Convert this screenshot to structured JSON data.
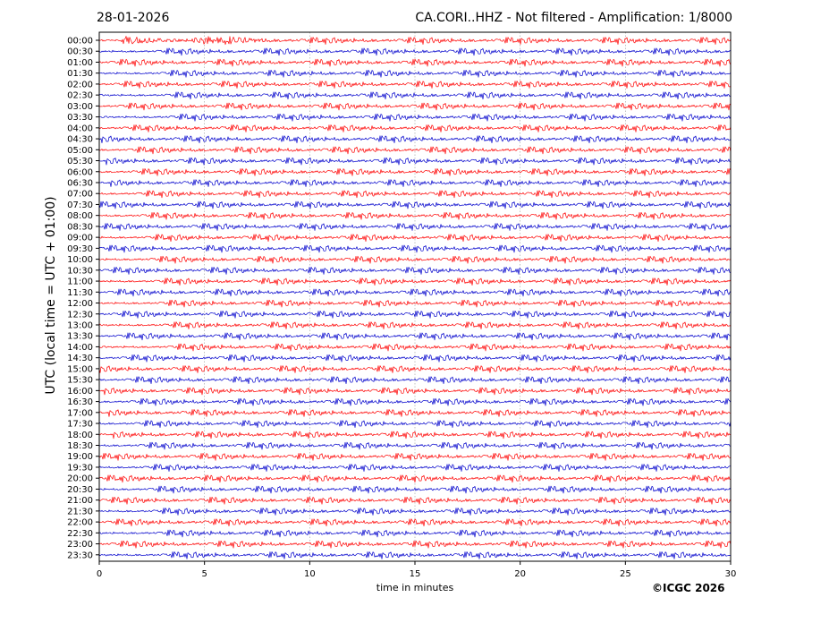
{
  "header": {
    "date": "28-01-2026",
    "title": "CA.CORI..HHZ - Not filtered - Amplification: 1/8000"
  },
  "footer": {
    "copyright": "©ICGC 2026"
  },
  "chart_data": {
    "type": "line",
    "title": "CA.CORI..HHZ - Not filtered - Amplification: 1/8000",
    "xlabel": "time in minutes",
    "ylabel": "UTC (local time = UTC + 01:00)",
    "xlim": [
      0,
      30
    ],
    "x_ticks": [
      0,
      5,
      10,
      15,
      20,
      25,
      30
    ],
    "grid": "vertical-dotted",
    "legend": "none",
    "row_labels": [
      "00:00",
      "00:30",
      "01:00",
      "01:30",
      "02:00",
      "02:30",
      "03:00",
      "03:30",
      "04:00",
      "04:30",
      "05:00",
      "05:30",
      "06:00",
      "06:30",
      "07:00",
      "07:30",
      "08:00",
      "08:30",
      "09:00",
      "09:30",
      "10:00",
      "10:30",
      "11:00",
      "11:30",
      "12:00",
      "12:30",
      "13:00",
      "13:30",
      "14:00",
      "14:30",
      "15:00",
      "15:30",
      "16:00",
      "16:30",
      "17:00",
      "17:30",
      "18:00",
      "18:30",
      "19:00",
      "19:30",
      "20:00",
      "20:30",
      "21:00",
      "21:30",
      "22:00",
      "22:30",
      "23:00",
      "23:30"
    ],
    "series_colors": [
      "#ff0000",
      "#0000cc"
    ],
    "color_pattern": "alternating per row, starting red"
  }
}
